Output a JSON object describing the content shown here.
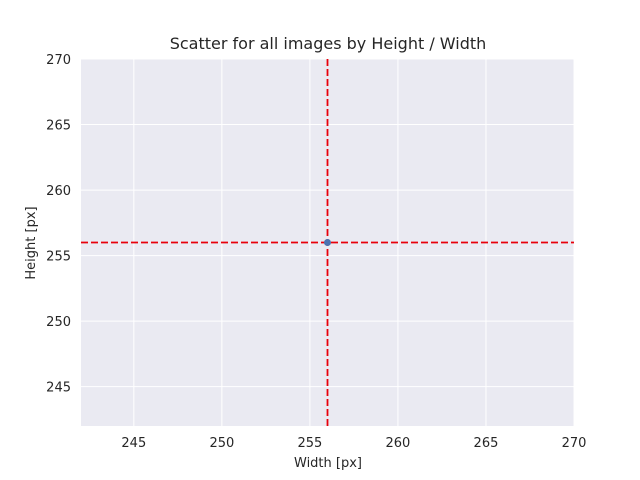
{
  "chart_data": {
    "type": "scatter",
    "title": "Scatter for all images by Height / Width",
    "xlabel": "Width [px]",
    "ylabel": "Height [px]",
    "xlim": [
      242,
      270
    ],
    "ylim": [
      242,
      270
    ],
    "xticks": [
      245,
      250,
      255,
      260,
      265,
      270
    ],
    "yticks": [
      245,
      250,
      255,
      260,
      265,
      270
    ],
    "points": [
      {
        "x": 256,
        "y": 256
      }
    ],
    "reference_lines": [
      {
        "orientation": "vertical",
        "value": 256,
        "style": "dashed",
        "color": "#e8000b"
      },
      {
        "orientation": "horizontal",
        "value": 256,
        "style": "dashed",
        "color": "#e8000b"
      }
    ],
    "grid": true,
    "colors": {
      "background": "#eaeaf2",
      "grid": "#ffffff",
      "point": "#4c72b0",
      "reference_line": "#e8000b"
    }
  }
}
